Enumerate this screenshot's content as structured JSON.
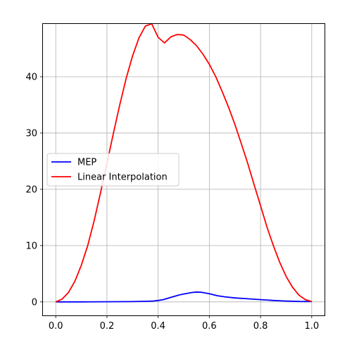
{
  "chart_data": {
    "type": "line",
    "title": "",
    "xlabel": "",
    "ylabel": "",
    "xlim": [
      -0.05,
      1.05
    ],
    "ylim": [
      -2.4,
      49.5
    ],
    "xticks": [
      0.0,
      0.2,
      0.4,
      0.6,
      0.8,
      1.0
    ],
    "xtick_labels": [
      "0.0",
      "0.2",
      "0.4",
      "0.6",
      "0.8",
      "1.0"
    ],
    "yticks": [
      0,
      10,
      20,
      30,
      40
    ],
    "ytick_labels": [
      "0",
      "10",
      "20",
      "30",
      "40"
    ],
    "grid": true,
    "legend": {
      "placement": "center-left"
    },
    "series": [
      {
        "name": "MEP",
        "color": "#0000ff",
        "x": [
          0.0,
          0.1,
          0.2,
          0.3,
          0.35,
          0.38,
          0.4,
          0.42,
          0.45,
          0.48,
          0.5,
          0.53,
          0.55,
          0.57,
          0.6,
          0.63,
          0.66,
          0.7,
          0.75,
          0.8,
          0.85,
          0.9,
          0.95,
          1.0
        ],
        "y": [
          0.0,
          0.0,
          0.02,
          0.05,
          0.1,
          0.15,
          0.25,
          0.4,
          0.8,
          1.2,
          1.4,
          1.65,
          1.75,
          1.7,
          1.45,
          1.1,
          0.9,
          0.7,
          0.55,
          0.4,
          0.25,
          0.15,
          0.08,
          0.05
        ]
      },
      {
        "name": "Linear Interpolation",
        "color": "#ff0000",
        "x": [
          0.0,
          0.025,
          0.05,
          0.075,
          0.1,
          0.125,
          0.15,
          0.175,
          0.2,
          0.225,
          0.25,
          0.275,
          0.3,
          0.325,
          0.35,
          0.375,
          0.4,
          0.425,
          0.45,
          0.475,
          0.5,
          0.525,
          0.55,
          0.575,
          0.6,
          0.625,
          0.65,
          0.675,
          0.7,
          0.725,
          0.75,
          0.775,
          0.8,
          0.825,
          0.85,
          0.875,
          0.9,
          0.925,
          0.95,
          0.975,
          1.0
        ],
        "y": [
          0.0,
          0.5,
          1.7,
          3.7,
          6.5,
          10.0,
          14.4,
          19.4,
          24.6,
          29.9,
          35.0,
          39.7,
          43.7,
          46.9,
          49.0,
          49.4,
          47.0,
          46.0,
          47.1,
          47.5,
          47.4,
          46.6,
          45.5,
          44.0,
          42.2,
          40.0,
          37.4,
          34.6,
          31.5,
          28.1,
          24.6,
          20.8,
          17.1,
          13.3,
          10.0,
          7.0,
          4.5,
          2.6,
          1.2,
          0.4,
          0.05
        ]
      }
    ]
  }
}
